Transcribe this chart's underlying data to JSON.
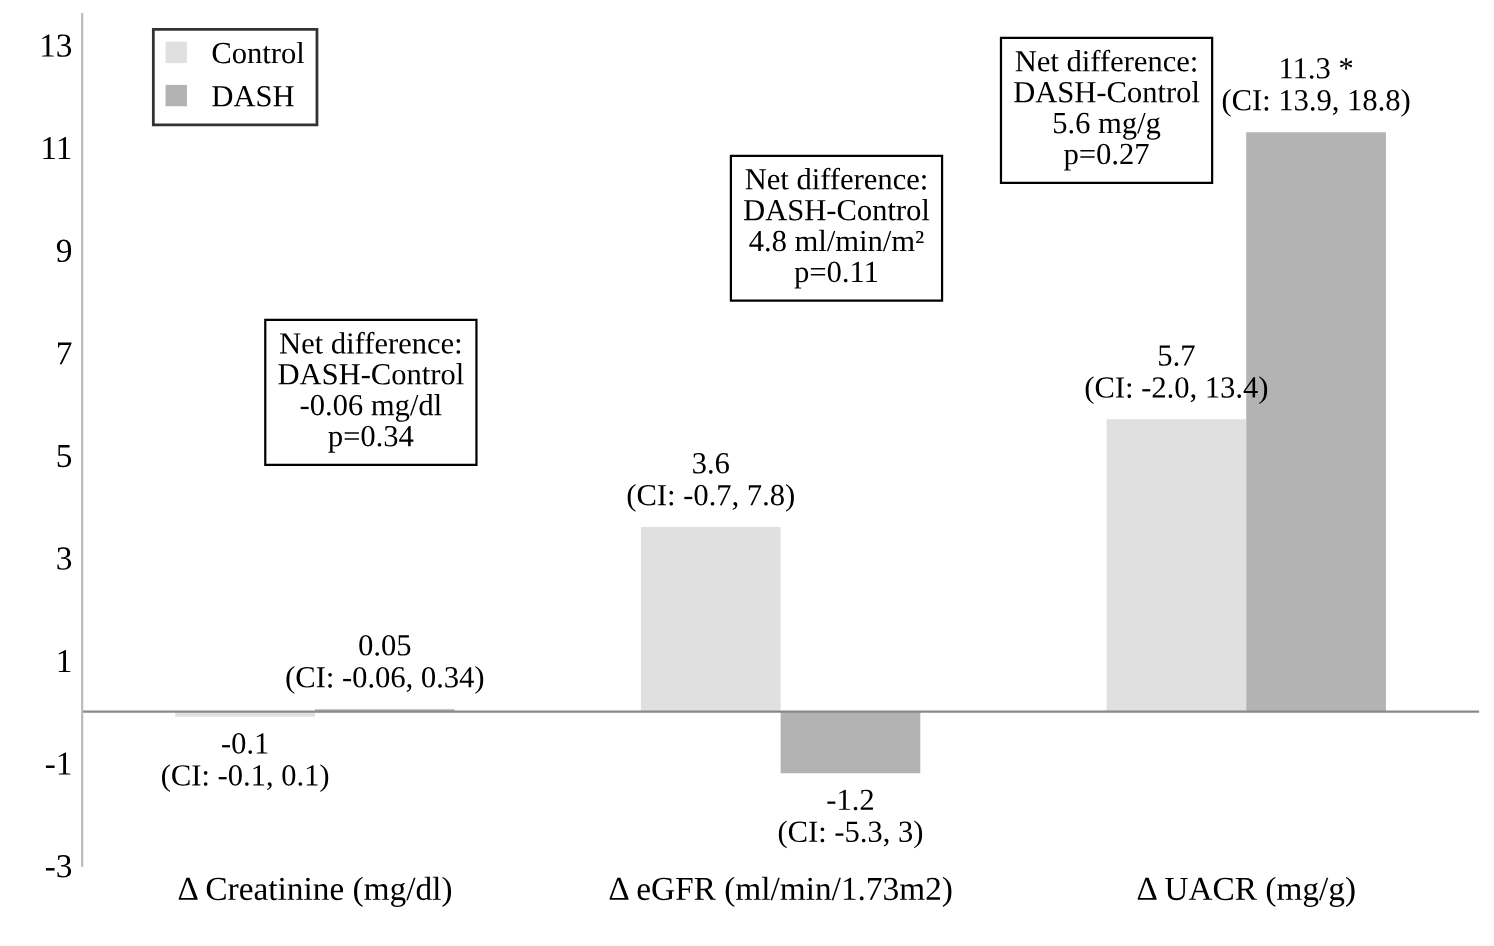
{
  "chart_data": {
    "type": "bar",
    "categories": [
      "Δ Creatinine (mg/dl)",
      "Δ eGFR (ml/min/1.73m2)",
      "Δ UACR (mg/g)"
    ],
    "series": [
      {
        "name": "Control",
        "color": "#e0e0e0",
        "values": [
          -0.1,
          3.6,
          5.7
        ],
        "value_labels": [
          "-0.1\n(CI: -0.1, 0.1)",
          "3.6\n(CI: -0.7, 7.8)",
          "5.7\n(CI: -2.0, 13.4)"
        ]
      },
      {
        "name": "DASH",
        "color": "#b3b3b3",
        "values": [
          0.05,
          -1.2,
          11.3
        ],
        "value_labels": [
          "0.05\n(CI: -0.06, 0.34)",
          "-1.2\n(CI: -5.3, 3)",
          "11.3 *\n(CI: 13.9, 18.8)"
        ]
      }
    ],
    "annotations": [
      "Net difference:\nDASH-Control\n-0.06 mg/dl\np=0.34",
      "Net difference:\nDASH-Control\n4.8 ml/min/m²\np=0.11",
      "Net difference:\nDASH-Control\n5.6 mg/g\np=0.27"
    ],
    "ylim": [
      -3,
      13.6
    ],
    "yticks": [
      -3,
      -1,
      1,
      3,
      5,
      7,
      9,
      11,
      13
    ],
    "grid": false,
    "legend": "top left"
  }
}
